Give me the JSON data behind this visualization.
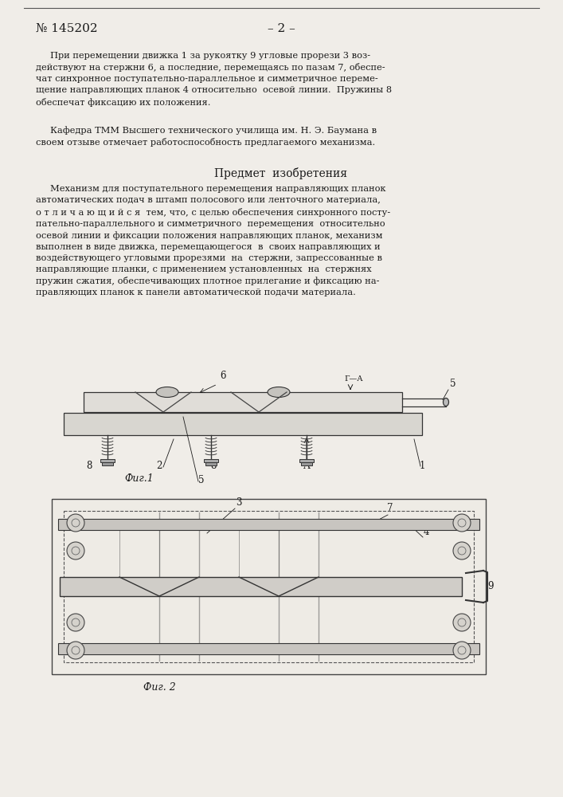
{
  "bg_color": "#f0ede8",
  "page_color": "#f7f5f0",
  "patent_number": "№ 145202",
  "page_number": "– 2 –",
  "text_color": "#1a1a1a",
  "fig1_label": "Фиг.1",
  "fig2_label": "Фиг. 2",
  "section_title": "Предмет  изобретения",
  "para1": "     При перемещении движка 1 за рукоятку 9 угловые прорези 3 воз-\nдействуют на стержни 6, а последние, перемещаясь по пазам 7, обеспе-\nчат синхронное поступательно-параллельное и симметричное переме-\nщение направляющих планок 4 относительно  осевой линии.  Пружины 8\nобеспечат фиксацию их положения.",
  "para2": "     Кафедра ТММ Высшего технического училища им. Н. Э. Баумана в\nсвоем отзыве отмечает работоспособность предлагаемого механизма.",
  "claim": "     Механизм для поступательного перемещения направляющих планок\nавтоматических подач в штамп полосового или ленточного материала,\nо т л и ч а ю щ и й с я  тем, что, с целью обеспечения синхронного посту-\nпательно-параллельного и симметричного  перемещения  относительно\nосевой линии и фиксации положения направляющих планок, механизм\nвыполнен в виде движка, перемещающегося  в  своих направляющих и\nвоздействующего угловыми прорезями  на  стержни, запрессованные в\nнаправляющие планки, с применением установленных  на  стержнях\nпружин сжатия, обеспечивающих плотное прилегание и фиксацию на-\nправляющих планок к панели автоматической подачи материала."
}
